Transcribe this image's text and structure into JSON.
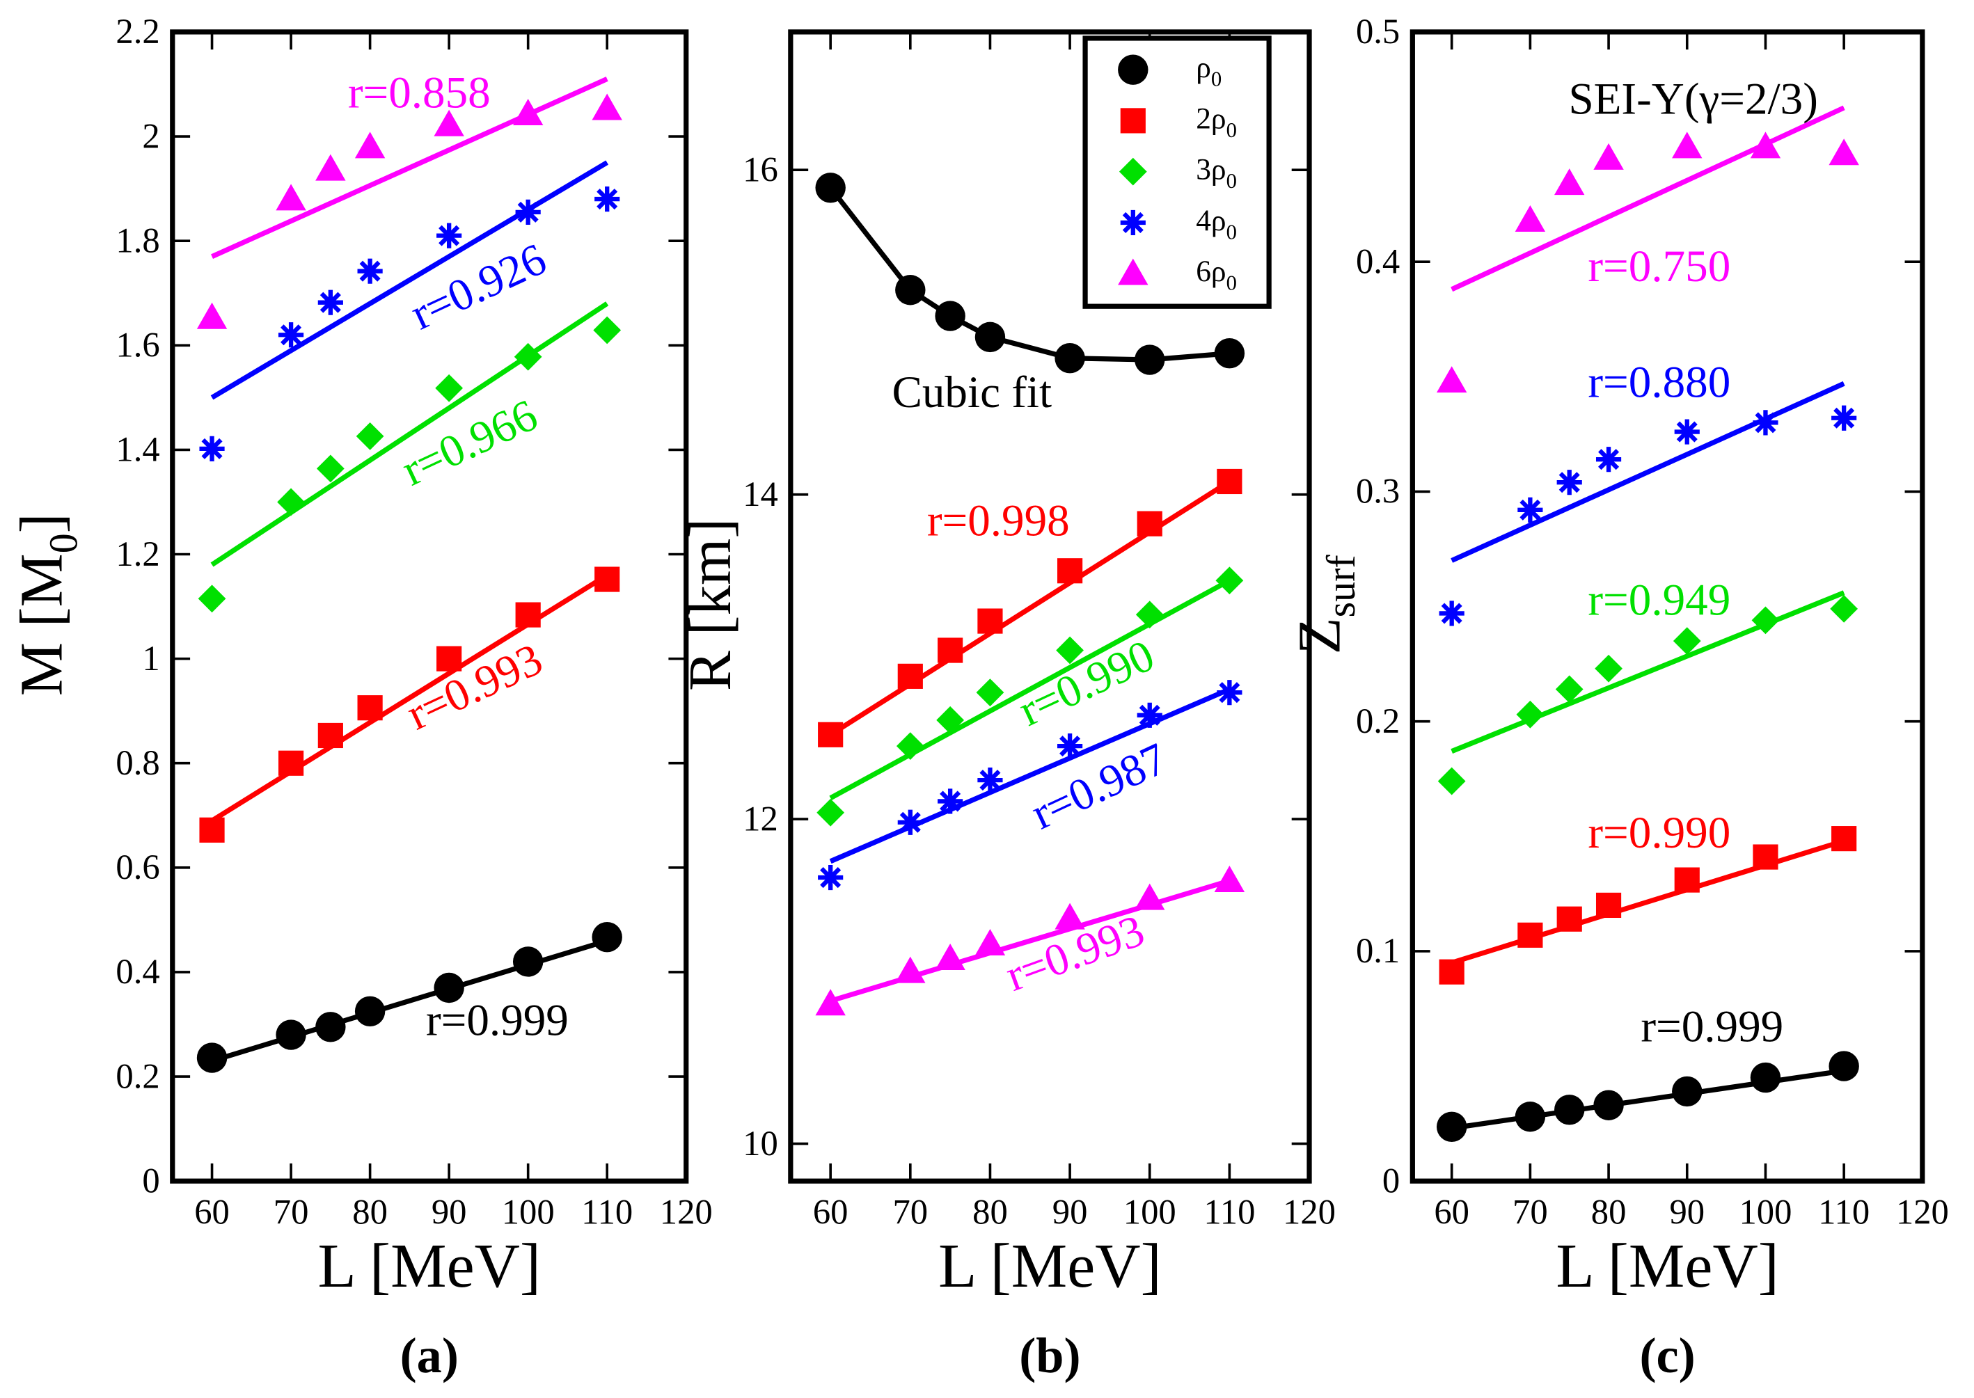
{
  "chart_data": [
    {
      "type": "scatter",
      "panel_label": "(a)",
      "panel_letter": "a",
      "xlabel": "L [MeV]",
      "ylabel": "M [M",
      "ylabel_sub": "0",
      "ylabel_end": "]",
      "xlim": [
        55,
        120
      ],
      "ylim": [
        0,
        2.2
      ],
      "xticks": [
        60,
        70,
        80,
        90,
        100,
        110,
        120
      ],
      "yticks": [
        0,
        0.2,
        0.4,
        0.6,
        0.8,
        1,
        1.2,
        1.4,
        1.6,
        1.8,
        2,
        2.2
      ],
      "x": [
        60,
        70,
        75,
        80,
        90,
        100,
        110
      ],
      "series": [
        {
          "name": "ρ0",
          "color": "#000000",
          "marker": "circle",
          "values": [
            0.236,
            0.28,
            0.295,
            0.325,
            0.37,
            0.42,
            0.467
          ],
          "fit": [
            0.23,
            0.46
          ],
          "r": "r=0.999"
        },
        {
          "name": "2ρ0",
          "color": "#ff0000",
          "marker": "square",
          "values": [
            0.672,
            0.8,
            0.853,
            0.906,
            1.0,
            1.084,
            1.152
          ],
          "fit": [
            0.69,
            1.16
          ],
          "r": "r=0.993"
        },
        {
          "name": "3ρ0",
          "color": "#00e000",
          "marker": "diamond",
          "values": [
            1.115,
            1.3,
            1.364,
            1.426,
            1.518,
            1.578,
            1.629
          ],
          "fit": [
            1.18,
            1.68
          ],
          "r": "r=0.966"
        },
        {
          "name": "4ρ0",
          "color": "#0000ff",
          "marker": "star",
          "values": [
            1.402,
            1.62,
            1.682,
            1.742,
            1.81,
            1.855,
            1.88
          ],
          "fit": [
            1.5,
            1.95
          ],
          "r": "r=0.926"
        },
        {
          "name": "6ρ0",
          "color": "#ff00ff",
          "marker": "triangle",
          "values": [
            1.653,
            1.88,
            1.937,
            1.98,
            2.022,
            2.043,
            2.053
          ],
          "fit": [
            1.77,
            2.11
          ],
          "r": "r=0.858"
        }
      ]
    },
    {
      "type": "scatter",
      "panel_label": "(b)",
      "panel_letter": "b",
      "xlabel": "L [MeV]",
      "ylabel": "R [km]",
      "xlim": [
        55,
        120
      ],
      "ylim": [
        9.77,
        16.85
      ],
      "xticks": [
        60,
        70,
        80,
        90,
        100,
        110,
        120
      ],
      "yticks": [
        10,
        12,
        14,
        16
      ],
      "x": [
        60,
        70,
        75,
        80,
        90,
        100,
        110
      ],
      "annotation": "Cubic fit",
      "legend": {
        "placement": "top-right",
        "entries": [
          "ρ",
          "2ρ",
          "3ρ",
          "4ρ",
          "6ρ"
        ],
        "sub": "0"
      },
      "series": [
        {
          "name": "ρ0",
          "color": "#000000",
          "marker": "circle",
          "values": [
            15.89,
            15.26,
            15.1,
            14.97,
            14.84,
            14.83,
            14.87
          ],
          "fit": "cubic"
        },
        {
          "name": "2ρ0",
          "color": "#ff0000",
          "marker": "square",
          "values": [
            12.52,
            12.88,
            13.04,
            13.22,
            13.53,
            13.82,
            14.08
          ],
          "fit": [
            12.52,
            14.08
          ],
          "r": "r=0.998"
        },
        {
          "name": "3ρ0",
          "color": "#00e000",
          "marker": "diamond",
          "values": [
            12.04,
            12.45,
            12.61,
            12.78,
            13.04,
            13.26,
            13.47
          ],
          "fit": [
            12.13,
            13.47
          ],
          "r": "r=0.990"
        },
        {
          "name": "4ρ0",
          "color": "#0000ff",
          "marker": "star",
          "values": [
            11.64,
            11.98,
            12.11,
            12.24,
            12.45,
            12.64,
            12.78
          ],
          "fit": [
            11.74,
            12.8
          ],
          "r": "r=0.987"
        },
        {
          "name": "6ρ0",
          "color": "#ff00ff",
          "marker": "triangle",
          "values": [
            10.86,
            11.06,
            11.14,
            11.23,
            11.39,
            11.51,
            11.62
          ],
          "fit": [
            10.88,
            11.62
          ],
          "r": "r=0.993"
        }
      ]
    },
    {
      "type": "scatter",
      "panel_label": "(c)",
      "panel_letter": "c",
      "xlabel": "L [MeV]",
      "ylabel": "Z",
      "ylabel_sub": "surf",
      "xlim": [
        55,
        120
      ],
      "ylim": [
        0,
        0.5
      ],
      "xticks": [
        60,
        70,
        80,
        90,
        100,
        110,
        120
      ],
      "yticks": [
        0,
        0.1,
        0.2,
        0.3,
        0.4,
        0.5
      ],
      "x": [
        60,
        70,
        75,
        80,
        90,
        100,
        110
      ],
      "annotation": "SEI-Y(γ=2/3)",
      "series": [
        {
          "name": "ρ0",
          "color": "#000000",
          "marker": "circle",
          "values": [
            0.0236,
            0.028,
            0.031,
            0.033,
            0.039,
            0.045,
            0.05
          ],
          "fit": [
            0.023,
            0.048
          ],
          "r": "r=0.999"
        },
        {
          "name": "2ρ0",
          "color": "#ff0000",
          "marker": "square",
          "values": [
            0.091,
            0.107,
            0.114,
            0.12,
            0.131,
            0.141,
            0.149
          ],
          "fit": [
            0.095,
            0.148
          ],
          "r": "r=0.990"
        },
        {
          "name": "3ρ0",
          "color": "#00e000",
          "marker": "diamond",
          "values": [
            0.174,
            0.203,
            0.214,
            0.223,
            0.235,
            0.244,
            0.249
          ],
          "fit": [
            0.187,
            0.256
          ],
          "r": "r=0.949"
        },
        {
          "name": "4ρ0",
          "color": "#0000ff",
          "marker": "star",
          "values": [
            0.247,
            0.292,
            0.304,
            0.314,
            0.326,
            0.33,
            0.332
          ],
          "fit": [
            0.27,
            0.347
          ],
          "r": "r=0.880"
        },
        {
          "name": "6ρ0",
          "color": "#ff00ff",
          "marker": "triangle",
          "values": [
            0.348,
            0.418,
            0.434,
            0.445,
            0.45,
            0.45,
            0.447
          ],
          "fit": [
            0.388,
            0.467
          ],
          "r": "r=0.750"
        }
      ]
    }
  ]
}
